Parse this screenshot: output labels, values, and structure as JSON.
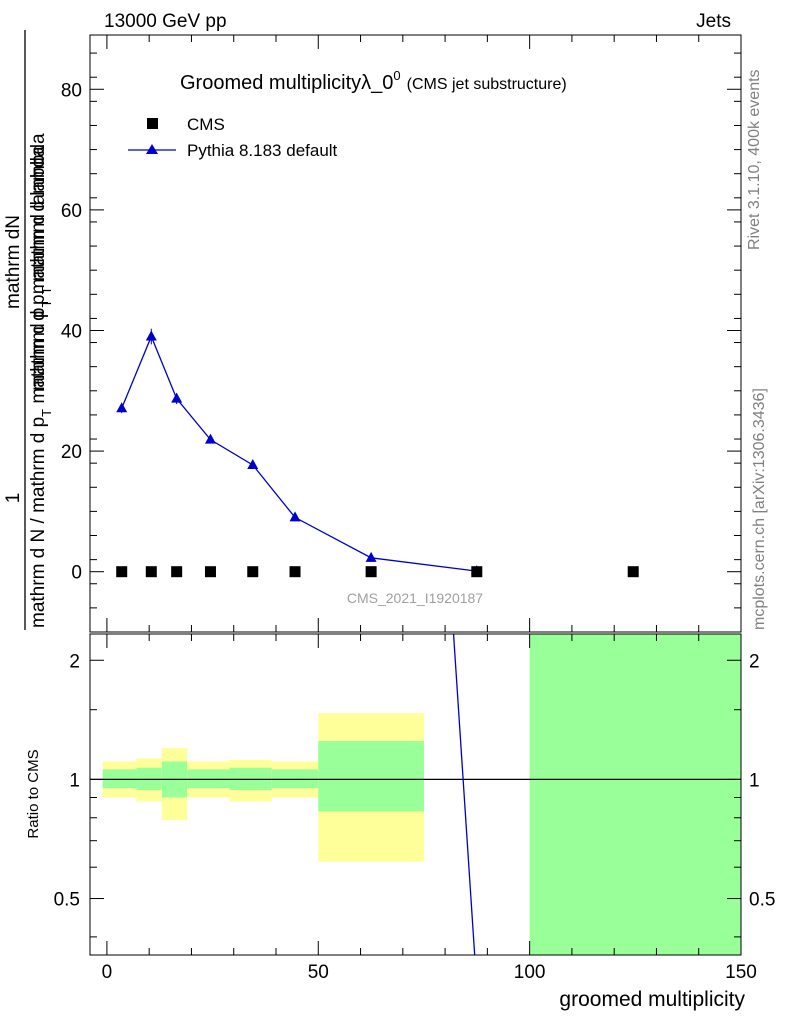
{
  "header": {
    "left": "13000 GeV pp",
    "right": "Jets"
  },
  "side_labels": {
    "rivet": "Rivet 3.1.10,  400k events",
    "mcplots": "mcplots.cern.ch [arXiv:1306.3436]"
  },
  "chart_data": [
    {
      "type": "scatter",
      "title": "Groomed multiplicityλ_0",
      "title_superscript": "0",
      "subtitle": "(CMS jet substructure)",
      "ylabel_numerator": "mathrm dN",
      "ylabel_denominator_top": "mathrm d p",
      "ylabel_denominator_top_sub": "T",
      "ylabel_denominator_top_rest": " mathrm d lambda",
      "ylabel_prefactor_numerator": "1",
      "ylabel_prefactor_denominator": "mathrm d N / mathrm d p",
      "ylabel_prefactor_denominator_sub": "T",
      "ylabel_prefactor_denominator_rest": " mathrm d p",
      "ylabel_prefactor_denominator_sub2": "T",
      "ylabel_prefactor_denominator_rest2": " mathrm d lambda",
      "watermark": "CMS_2021_I1920187",
      "xlim": [
        -4,
        150
      ],
      "ylim": [
        -10,
        89
      ],
      "yticks": [
        0,
        20,
        40,
        60,
        80
      ],
      "legend": [
        {
          "name": "CMS",
          "marker": "square",
          "color": "#000000"
        },
        {
          "name": "Pythia 8.183 default",
          "marker": "triangle",
          "color": "#0000cc"
        }
      ],
      "legend_position": "top-left",
      "series": [
        {
          "name": "CMS",
          "x": [
            3.5,
            10.5,
            16.5,
            24.5,
            34.5,
            44.5,
            62.5,
            87.5,
            124.5
          ],
          "y": [
            0,
            0,
            0,
            0,
            0,
            0,
            0,
            0,
            0
          ]
        },
        {
          "name": "Pythia 8.183 default",
          "x": [
            3.5,
            10.5,
            16.5,
            24.5,
            34.5,
            44.5,
            62.5,
            87.5
          ],
          "y": [
            27.1,
            39.0,
            28.7,
            21.9,
            17.7,
            9.0,
            2.3,
            0.1
          ],
          "yerr": [
            0.8,
            1.3,
            0.9,
            0.5,
            0.4,
            0.3,
            0.15,
            0.05
          ]
        }
      ]
    },
    {
      "type": "area",
      "ylabel": "Ratio to CMS",
      "xlabel": "groomed multiplicity",
      "xlim": [
        -4,
        150
      ],
      "ylim": [
        0.36,
        2.33
      ],
      "ylog": true,
      "xticks": [
        0,
        50,
        100,
        150
      ],
      "yticks": [
        0.5,
        1,
        2
      ],
      "bands": [
        {
          "x0": -1,
          "x1": 7,
          "inner": [
            0.95,
            1.06
          ],
          "outer": [
            0.9,
            1.11
          ]
        },
        {
          "x0": 7,
          "x1": 13,
          "inner": [
            0.94,
            1.07
          ],
          "outer": [
            0.88,
            1.13
          ]
        },
        {
          "x0": 13,
          "x1": 19,
          "inner": [
            0.9,
            1.11
          ],
          "outer": [
            0.79,
            1.2
          ]
        },
        {
          "x0": 19,
          "x1": 29,
          "inner": [
            0.95,
            1.06
          ],
          "outer": [
            0.9,
            1.11
          ]
        },
        {
          "x0": 29,
          "x1": 39,
          "inner": [
            0.94,
            1.07
          ],
          "outer": [
            0.88,
            1.12
          ]
        },
        {
          "x0": 39,
          "x1": 50,
          "inner": [
            0.95,
            1.06
          ],
          "outer": [
            0.9,
            1.11
          ]
        },
        {
          "x0": 50,
          "x1": 75,
          "inner": [
            0.83,
            1.25
          ],
          "outer": [
            0.62,
            1.47
          ]
        },
        {
          "x0": 100,
          "x1": 150,
          "inner": [
            0.36,
            2.33
          ],
          "outer": [
            0.36,
            2.33
          ]
        }
      ],
      "ratio_line": {
        "x": [
          82,
          87
        ],
        "y": [
          2.33,
          0.36
        ]
      },
      "colors": {
        "inner": "#99ff99",
        "outer": "#ffff99",
        "mc": "#0000cc"
      }
    }
  ]
}
